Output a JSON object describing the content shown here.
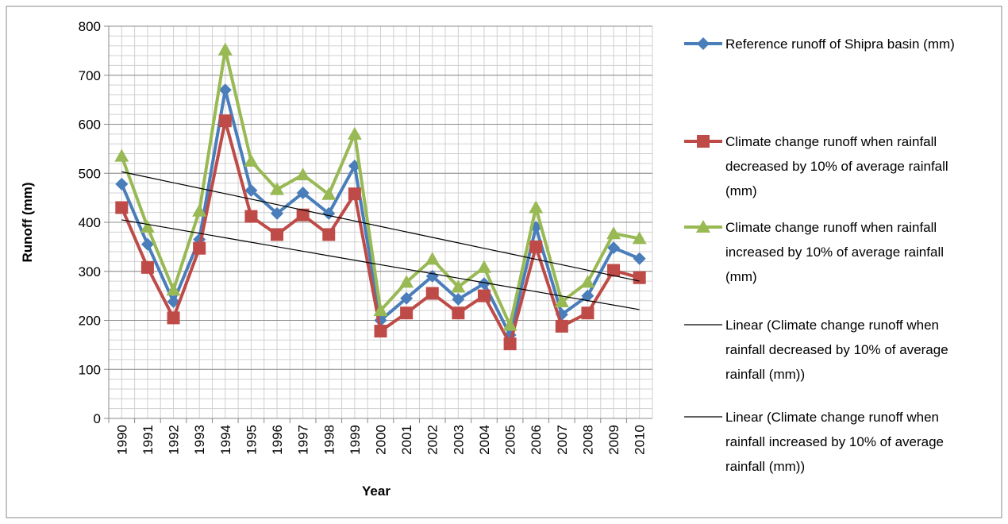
{
  "chart_data": {
    "type": "line",
    "x_label": "Year",
    "y_label": "Runoff (mm)",
    "categories": [
      "1990",
      "1991",
      "1992",
      "1993",
      "1994",
      "1995",
      "1996",
      "1997",
      "1998",
      "1999",
      "2000",
      "2001",
      "2002",
      "2003",
      "2004",
      "2005",
      "2006",
      "2007",
      "2008",
      "2009",
      "2010"
    ],
    "ylim": [
      0,
      800
    ],
    "yticks": [
      0,
      100,
      200,
      300,
      400,
      500,
      600,
      700,
      800
    ],
    "grid": true,
    "legend": "right",
    "series": [
      {
        "name": "Reference runoff of Shipra basin (mm)",
        "color": "#4a7ebb",
        "marker": "diamond",
        "values": [
          478,
          355,
          238,
          365,
          670,
          465,
          418,
          460,
          418,
          515,
          200,
          245,
          290,
          243,
          275,
          170,
          390,
          212,
          250,
          348,
          326
        ]
      },
      {
        "name": "Climate change  runoff when rainfall decreased by 10% of average rainfall (mm)",
        "color": "#be4b48",
        "marker": "square",
        "values": [
          430,
          308,
          205,
          347,
          607,
          412,
          375,
          415,
          375,
          458,
          178,
          215,
          255,
          215,
          250,
          152,
          350,
          188,
          215,
          302,
          287
        ]
      },
      {
        "name": "Climate change  runoff when rainfall increased by 10% of average rainfall (mm)",
        "color": "#98b954",
        "marker": "triangle",
        "values": [
          535,
          390,
          262,
          423,
          752,
          525,
          467,
          497,
          457,
          580,
          220,
          278,
          325,
          268,
          308,
          190,
          430,
          238,
          278,
          377,
          367
        ]
      },
      {
        "name": "Linear (Climate change  runoff when rainfall decreased by 10% of average rainfall (mm))",
        "color": "#000000",
        "marker": "none",
        "values": [
          405,
          395.9,
          386.7,
          377.6,
          368.4,
          359.3,
          350.1,
          341,
          331.8,
          322.7,
          313.5,
          304.4,
          295.2,
          286.1,
          276.9,
          267.8,
          258.6,
          249.5,
          240.3,
          231.2,
          222
        ]
      },
      {
        "name": "Linear (Climate change  runoff when rainfall increased by 10% of average rainfall (mm))",
        "color": "#000000",
        "marker": "none",
        "values": [
          503,
          491.9,
          480.7,
          469.6,
          458.4,
          447.3,
          436.1,
          425,
          413.8,
          402.7,
          391.5,
          380.4,
          369.2,
          358.1,
          346.9,
          335.8,
          324.6,
          313.5,
          302.3,
          291.2,
          280
        ]
      }
    ]
  }
}
